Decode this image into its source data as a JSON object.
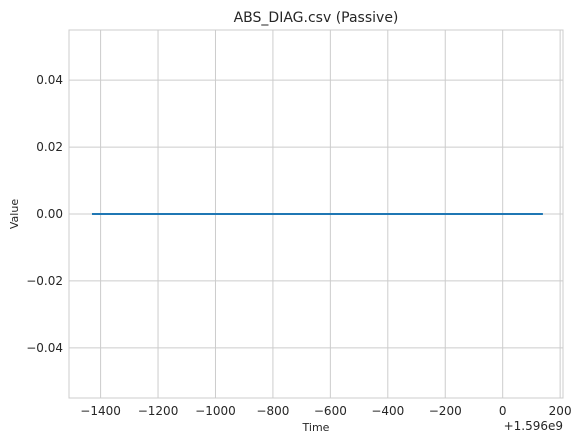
{
  "chart_data": {
    "type": "line",
    "title": "ABS_DIAG.csv (Passive)",
    "xlabel": "Time",
    "ylabel": "Value",
    "x_offset_label": "+1.596e9",
    "xlim": [
      -1510,
      210
    ],
    "ylim": [
      -0.055,
      0.055
    ],
    "x_ticks": [
      -1400,
      -1200,
      -1000,
      -800,
      -600,
      -400,
      -200,
      0,
      200
    ],
    "x_tick_labels": [
      "−1400",
      "−1200",
      "−1000",
      "−800",
      "−600",
      "−400",
      "−200",
      "0",
      "200"
    ],
    "y_ticks": [
      -0.04,
      -0.02,
      0.0,
      0.02,
      0.04
    ],
    "y_tick_labels": [
      "−0.04",
      "−0.02",
      "0.00",
      "0.02",
      "0.04"
    ],
    "grid": true,
    "series": [
      {
        "color": "#1f77b4",
        "x": [
          -1430,
          140
        ],
        "y": [
          0,
          0
        ]
      }
    ]
  }
}
